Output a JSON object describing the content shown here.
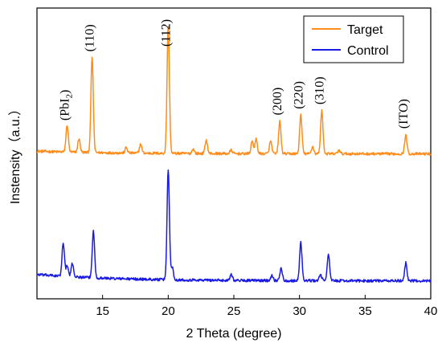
{
  "chart_data": {
    "type": "line",
    "xlabel": "2 Theta (degree)",
    "ylabel": "Instensity（a.u.）",
    "xlim": [
      10,
      40
    ],
    "x_ticks": [
      15,
      20,
      25,
      30,
      35,
      40
    ],
    "y_ticks_shown": false,
    "grid": false,
    "legend": {
      "placement": "top-right",
      "entries": [
        "Target",
        "Control"
      ]
    },
    "peak_annotations": [
      {
        "label": "(PbI",
        "sub": "2",
        "tail": ")",
        "x": 12.3
      },
      {
        "label": "(110)",
        "x": 14.2
      },
      {
        "label": "(112)",
        "x": 20.0
      },
      {
        "label": "(200)",
        "x": 28.5
      },
      {
        "label": "(220)",
        "x": 30.1
      },
      {
        "label": "(310)",
        "x": 31.7
      },
      {
        "label": "(ITO)",
        "x": 38.1
      }
    ],
    "series": [
      {
        "name": "Target",
        "color": "#ff8c1a",
        "baseline": 1.62,
        "peaks": [
          [
            12.3,
            0.3
          ],
          [
            13.2,
            0.15
          ],
          [
            14.2,
            1.07
          ],
          [
            16.8,
            0.06
          ],
          [
            17.9,
            0.1
          ],
          [
            20.0,
            1.43
          ],
          [
            21.9,
            0.05
          ],
          [
            22.9,
            0.15
          ],
          [
            24.8,
            0.04
          ],
          [
            26.4,
            0.14
          ],
          [
            26.7,
            0.16
          ],
          [
            27.8,
            0.14
          ],
          [
            28.5,
            0.36
          ],
          [
            30.1,
            0.43
          ],
          [
            31.0,
            0.08
          ],
          [
            31.7,
            0.48
          ],
          [
            33.0,
            0.04
          ],
          [
            38.1,
            0.21
          ]
        ]
      },
      {
        "name": "Control",
        "color": "#1a1ae6",
        "baseline": 0.2,
        "peaks": [
          [
            12.0,
            0.38
          ],
          [
            12.3,
            0.12
          ],
          [
            12.7,
            0.15
          ],
          [
            14.3,
            0.52
          ],
          [
            20.0,
            1.23
          ],
          [
            20.3,
            0.14
          ],
          [
            24.8,
            0.07
          ],
          [
            27.9,
            0.06
          ],
          [
            28.6,
            0.14
          ],
          [
            30.1,
            0.43
          ],
          [
            31.6,
            0.07
          ],
          [
            32.2,
            0.3
          ],
          [
            38.1,
            0.2
          ]
        ]
      }
    ]
  }
}
